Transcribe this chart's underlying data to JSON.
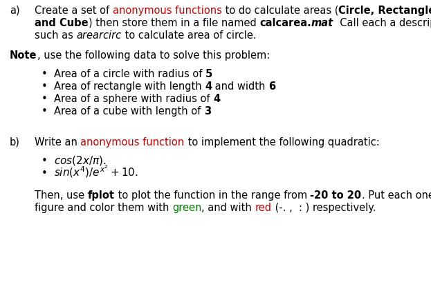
{
  "bg_color": "#ffffff",
  "red_color": "#cc0000",
  "green_color": "#008000",
  "fig_width": 6.23,
  "fig_height": 4.1,
  "dpi": 100
}
